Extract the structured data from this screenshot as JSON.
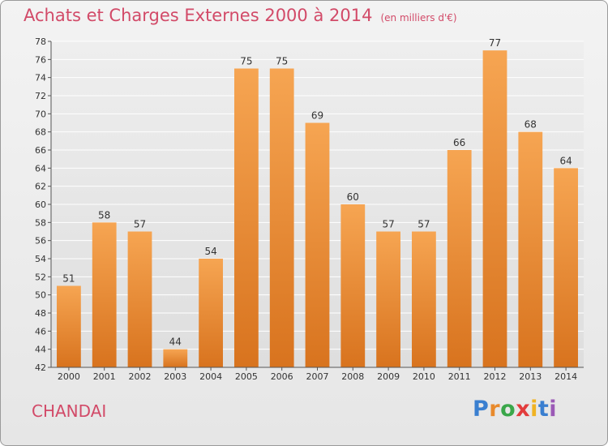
{
  "header": {
    "title": "Achats et Charges Externes 2000 à 2014",
    "subtitle": "(en milliers d'€)"
  },
  "footer": {
    "city": "CHANDAI",
    "brand": "Proxiti"
  },
  "colors": {
    "title": "#d24a68",
    "bar_top": "#f6a552",
    "bar_bottom": "#d8731e",
    "grid": "#ffffff",
    "axis": "#555555"
  },
  "chart_data": {
    "type": "bar",
    "categories": [
      "2000",
      "2001",
      "2002",
      "2003",
      "2004",
      "2005",
      "2006",
      "2007",
      "2008",
      "2009",
      "2010",
      "2011",
      "2012",
      "2013",
      "2014"
    ],
    "values": [
      51,
      58,
      57,
      44,
      54,
      75,
      75,
      69,
      60,
      57,
      57,
      66,
      77,
      68,
      64
    ],
    "ylim": [
      42,
      78
    ],
    "yticks": [
      42,
      44,
      46,
      48,
      50,
      52,
      54,
      56,
      58,
      60,
      62,
      64,
      66,
      68,
      70,
      72,
      74,
      76,
      78
    ],
    "grid": true,
    "data_labels": true
  }
}
